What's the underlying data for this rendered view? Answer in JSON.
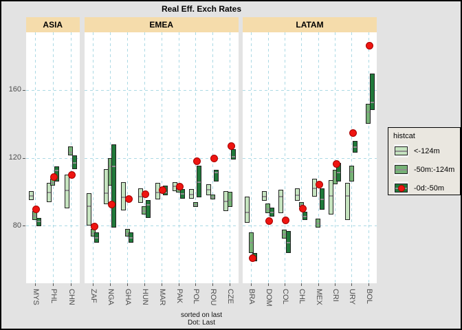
{
  "title": "Real Eff. Exch Rates",
  "caption": {
    "line1": "sorted on last",
    "line2": "Dot: Last"
  },
  "y_axis": {
    "ticks": [
      80,
      120,
      160
    ]
  },
  "legend": {
    "title": "histcat",
    "items": [
      {
        "label": "<-124m",
        "swatch": "light-green-box"
      },
      {
        "label": "-50m:-124m",
        "swatch": "medium-green-box"
      },
      {
        "label": "-0d:-50m",
        "swatch": "dark-green-box-with-red-dot"
      }
    ]
  },
  "colors": {
    "page_bg": "#e3e3e3",
    "panel_bg": "#ffffff",
    "strip_bg": "#f5dcab",
    "gridline": "#abd9e4",
    "light_green": "#c6e4c0",
    "medium_green": "#76b276",
    "dark_green": "#20793a",
    "dot_red": "#ee1511",
    "box_border": "#1f1f1f",
    "midline_gray": "#8f8f8f"
  },
  "chart_data": {
    "type": "bar",
    "subtype": "dodged vertical range boxes (history windows) with red dot = last value",
    "ylim": [
      46,
      194
    ],
    "grid": "dashed, at y = 80/120/160 and at each category",
    "legend_position": "right",
    "note": "each country shows up to three range boxes [low, high, median]: '<-124m' (light), '-50m:-124m' (medium), '-0d:-50m' (dark); dot marks last observation",
    "panels": [
      {
        "name": "ASIA",
        "countries": [
          {
            "code": "MYS",
            "light": [
              95,
              100.5,
              98
            ],
            "medium": [
              83.5,
              88.5
            ],
            "dark": [
              79.5,
              84.5,
              83
            ],
            "dot": 89.5
          },
          {
            "code": "PHL",
            "light": [
              94,
              105,
              100
            ],
            "medium": [
              103.5,
              107.5
            ],
            "dark": [
              106,
              115,
              113
            ],
            "dot": 108.5
          },
          {
            "code": "CHN",
            "light": [
              90,
              110,
              101
            ],
            "medium": [
              121.5,
              126.5,
              123.5
            ],
            "dark": [
              113.5,
              121.5
            ],
            "dot": 110
          }
        ]
      },
      {
        "name": "EMEA",
        "countries": [
          {
            "code": "ZAF",
            "light": [
              80,
              99,
              92
            ],
            "medium": [
              73.5,
              78
            ],
            "dark": [
              70,
              76,
              73
            ],
            "dot": 79.5
          },
          {
            "code": "NGA",
            "light": [
              92.5,
              113.5,
              99.5
            ],
            "medium": [
              103.5,
              120,
              115.5
            ],
            "dark": [
              79,
              128,
              115.5
            ],
            "dot": 92.5
          },
          {
            "code": "GHA",
            "light": [
              89,
              105.5,
              97
            ],
            "medium": [
              73.5,
              78
            ],
            "dark": [
              70,
              76
            ],
            "dot": 95.5
          },
          {
            "code": "HUN",
            "light": [
              93.5,
              102,
              97.5
            ],
            "medium": [
              86.5,
              91.5
            ],
            "dark": [
              84.5,
              95,
              92.5
            ],
            "dot": 98.5
          },
          {
            "code": "MAR",
            "light": [
              95.5,
              105,
              100
            ],
            "medium": null,
            "dark": [
              98,
              103.5,
              100
            ],
            "dot": 101
          },
          {
            "code": "PAK",
            "light": [
              100.5,
              105.5,
              103.5
            ],
            "medium": [
              99.5,
              103.5
            ],
            "dark": [
              96,
              101.5,
              99
            ],
            "dot": 103
          },
          {
            "code": "POL",
            "light": [
              96,
              101.5
            ],
            "medium": [
              91,
              94
            ],
            "dark": [
              96.5,
              115.5
            ],
            "dot": 118
          },
          {
            "code": "ROU",
            "light": [
              98,
              104.5,
              101.5
            ],
            "medium": [
              95.5,
              98.5
            ],
            "dark": [
              106,
              113,
              111.5
            ],
            "dot": 119.5
          },
          {
            "code": "CZE",
            "light": [
              88.5,
              100.5
            ],
            "medium": [
              91,
              100
            ],
            "dark": [
              119,
              125,
              121
            ],
            "dot": 127
          }
        ]
      },
      {
        "name": "LATAM",
        "countries": [
          {
            "code": "BRA",
            "light": [
              81.5,
              97,
              88
            ],
            "medium": [
              64,
              76,
              70.5
            ],
            "dark": [
              59,
              64
            ],
            "dot": 61
          },
          {
            "code": "DOM",
            "light": [
              94.5,
              100.5
            ],
            "medium": [
              87.5,
              93
            ],
            "dark": [
              85.5,
              90.5
            ],
            "dot": 82.5
          },
          {
            "code": "COL",
            "light": [
              87.5,
              101,
              97.5
            ],
            "medium": [
              72.5,
              77.5
            ],
            "dark": [
              64,
              77
            ],
            "dot": 83
          },
          {
            "code": "CHL",
            "light": [
              94.5,
              102
            ],
            "medium": [
              91,
              94
            ],
            "dark": [
              83.5,
              88
            ],
            "dot": 90
          },
          {
            "code": "MEX",
            "light": [
              97,
              107.5,
              102.5
            ],
            "medium": [
              79,
              84
            ],
            "dark": [
              89.5,
              102,
              96
            ],
            "dot": 104
          },
          {
            "code": "CRI",
            "light": [
              86.5,
              107,
              98
            ],
            "medium": [
              104.5,
              113
            ],
            "dark": [
              106,
              117
            ],
            "dot": 116.5
          },
          {
            "code": "URY",
            "light": [
              83.5,
              105,
              98
            ],
            "medium": [
              106,
              115.5,
              112
            ],
            "dark": [
              123,
              130,
              126.5
            ],
            "dot": 134.5
          },
          {
            "code": "BOL",
            "light": null,
            "medium": [
              140,
              152,
              147.5
            ],
            "dark": [
              148,
              169.5,
              153
            ],
            "dot": 186
          }
        ]
      }
    ]
  }
}
